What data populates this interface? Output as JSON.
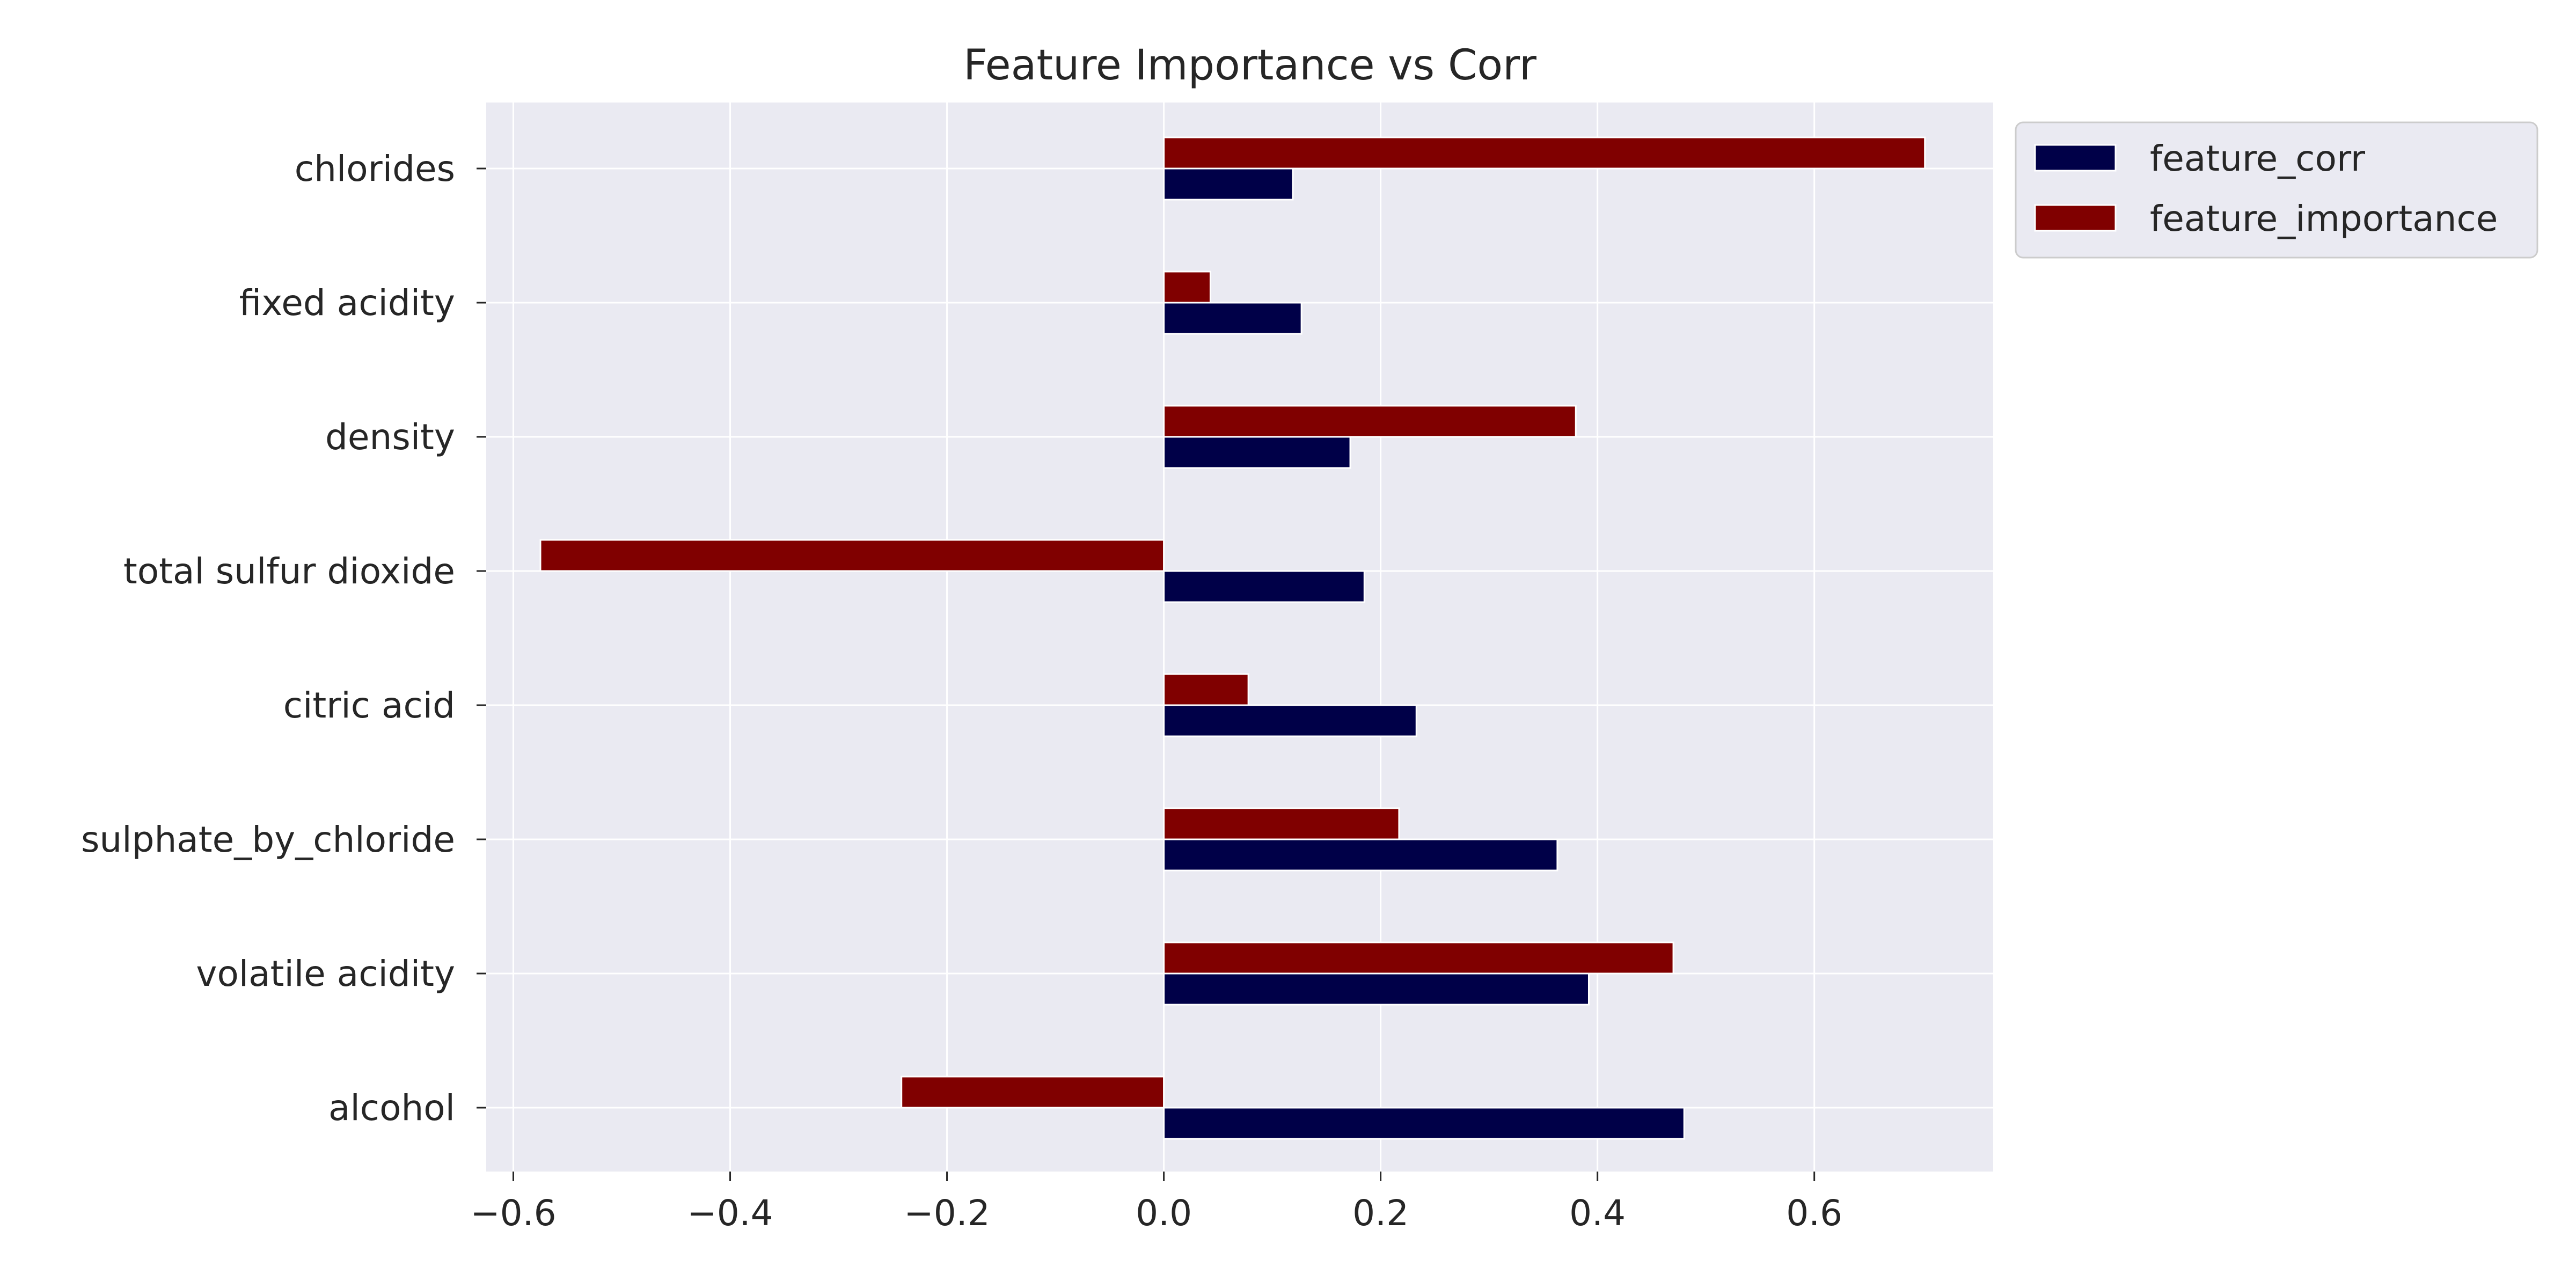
{
  "chart_data": {
    "type": "bar",
    "orientation": "horizontal",
    "title": "Feature Importance vs Corr",
    "xlabel": "",
    "ylabel": "",
    "xlim": [
      -0.625,
      0.765
    ],
    "xticks": [
      -0.6,
      -0.4,
      -0.2,
      0.0,
      0.2,
      0.4,
      0.6
    ],
    "xtick_labels": [
      "−0.6",
      "−0.4",
      "−0.2",
      "0.0",
      "0.2",
      "0.4",
      "0.6"
    ],
    "grid": true,
    "legend_position": "outside-top-right",
    "categories": [
      "chlorides",
      "fixed acidity",
      "density",
      "total sulfur dioxide",
      "citric acid",
      "sulphate_by_chloride",
      "volatile acidity",
      "alcohol"
    ],
    "series": [
      {
        "name": "feature_corr",
        "color": "#000048",
        "values": [
          0.119,
          0.127,
          0.172,
          0.185,
          0.233,
          0.363,
          0.392,
          0.48
        ]
      },
      {
        "name": "feature_importance",
        "color": "#800000",
        "values": [
          0.702,
          0.043,
          0.38,
          -0.575,
          0.078,
          0.217,
          0.47,
          -0.242
        ]
      }
    ]
  },
  "colors": {
    "plot_background": "#eaeaf2",
    "grid": "#ffffff",
    "text": "#262626"
  }
}
